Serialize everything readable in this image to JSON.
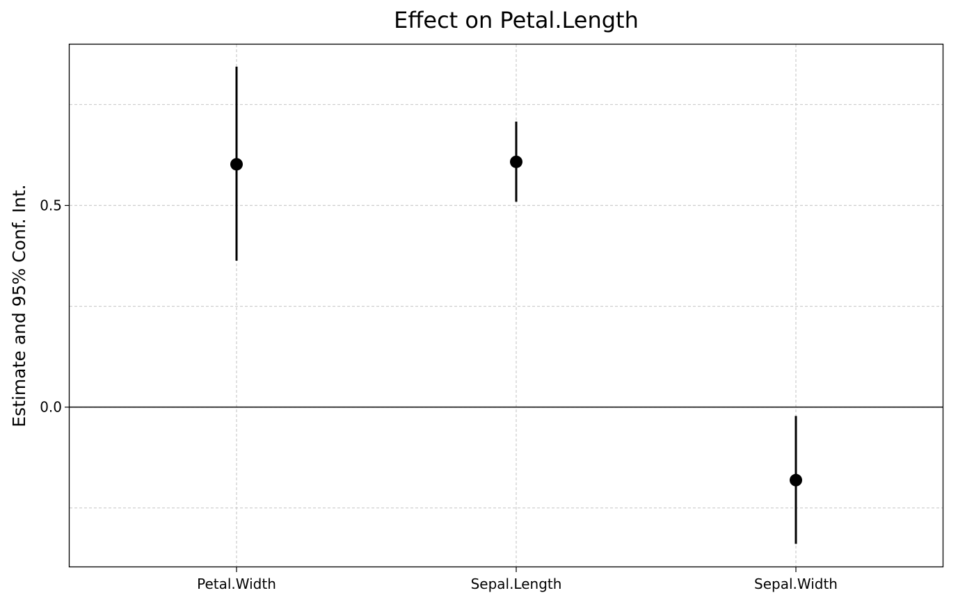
{
  "chart_data": {
    "type": "scatter",
    "title": "Effect on Petal.Length",
    "xlabel": "",
    "ylabel": "Estimate and 95% Conf. Int.",
    "categories": [
      "Petal.Width",
      "Sepal.Length",
      "Sepal.Width"
    ],
    "estimates": [
      0.602,
      0.608,
      -0.181
    ],
    "ci_lower": [
      0.363,
      0.509,
      -0.339
    ],
    "ci_upper": [
      0.844,
      0.708,
      -0.022
    ],
    "ylim": [
      -0.397,
      0.899
    ],
    "y_major_ticks": [
      0.0,
      0.5
    ],
    "y_tick_labels": [
      "0.0",
      "0.5"
    ],
    "y_minor_gridlines": [
      -0.25,
      0.25,
      0.75
    ],
    "reference_line": 0,
    "grid": true,
    "legend": "none"
  }
}
